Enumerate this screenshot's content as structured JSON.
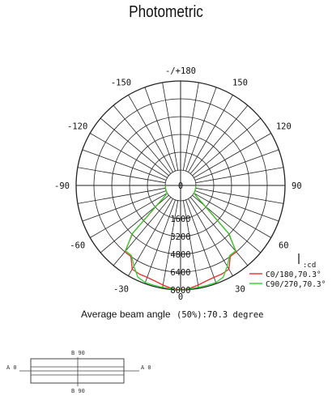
{
  "chart_data": {
    "type": "polar",
    "title": "Photometric",
    "angle_labels": [
      {
        "angle": 180,
        "text": "-/+180"
      },
      {
        "angle": -150,
        "text": "-150"
      },
      {
        "angle": 150,
        "text": "150"
      },
      {
        "angle": -120,
        "text": "-120"
      },
      {
        "angle": 120,
        "text": "120"
      },
      {
        "angle": -90,
        "text": "-90"
      },
      {
        "angle": 90,
        "text": "90"
      },
      {
        "angle": -60,
        "text": "-60"
      },
      {
        "angle": 60,
        "text": "60"
      },
      {
        "angle": -30,
        "text": "-30"
      },
      {
        "angle": 30,
        "text": "30"
      },
      {
        "angle": 0,
        "text": "0"
      }
    ],
    "radial_ticks": [
      0,
      1600,
      3200,
      4800,
      6400,
      8000
    ],
    "radial_tick_labels": [
      "0",
      "1600",
      "3200",
      "4800",
      "6400",
      "8000"
    ],
    "radial_max": 8000,
    "unit_label": "cd",
    "series": [
      {
        "name": "C0/180,70.3°",
        "color": "#e03030",
        "angles": [
          -90,
          -80,
          -70,
          -60,
          -55,
          -50,
          -45,
          -40,
          -35,
          -30,
          -25,
          -20,
          -15,
          -10,
          -5,
          0,
          5,
          10,
          15,
          20,
          25,
          30,
          35,
          40,
          45,
          50,
          55,
          60,
          70,
          80,
          90
        ],
        "values": [
          0,
          0,
          0,
          0,
          400,
          1400,
          4700,
          6400,
          6400,
          7300,
          7400,
          7400,
          7500,
          7700,
          7900,
          8000,
          7900,
          7700,
          7500,
          7400,
          7400,
          7300,
          6400,
          6400,
          4700,
          1400,
          400,
          0,
          0,
          0,
          0
        ]
      },
      {
        "name": "C90/270,70.3°",
        "color": "#33cc33",
        "angles": [
          -90,
          -80,
          -70,
          -60,
          -55,
          -50,
          -45,
          -40,
          -35,
          -30,
          -25,
          -20,
          -15,
          -10,
          -5,
          0,
          5,
          10,
          15,
          20,
          25,
          30,
          35,
          40,
          45,
          50,
          55,
          60,
          70,
          80,
          90
        ],
        "values": [
          0,
          0,
          0,
          0,
          400,
          1500,
          4800,
          6300,
          6300,
          7000,
          7700,
          7900,
          7900,
          7900,
          7950,
          8000,
          7950,
          7900,
          7900,
          7900,
          7700,
          7000,
          6300,
          6300,
          4800,
          1500,
          400,
          0,
          0,
          0,
          0
        ]
      }
    ]
  },
  "footer": {
    "beam_label": "Average beam angle",
    "beam_value": "(50%):70.3 degree"
  },
  "diagram": {
    "label_b90_top": "B 90",
    "label_b90_bottom": "B 90",
    "label_a0_left": "A 0",
    "label_a0_right": "A 0"
  }
}
